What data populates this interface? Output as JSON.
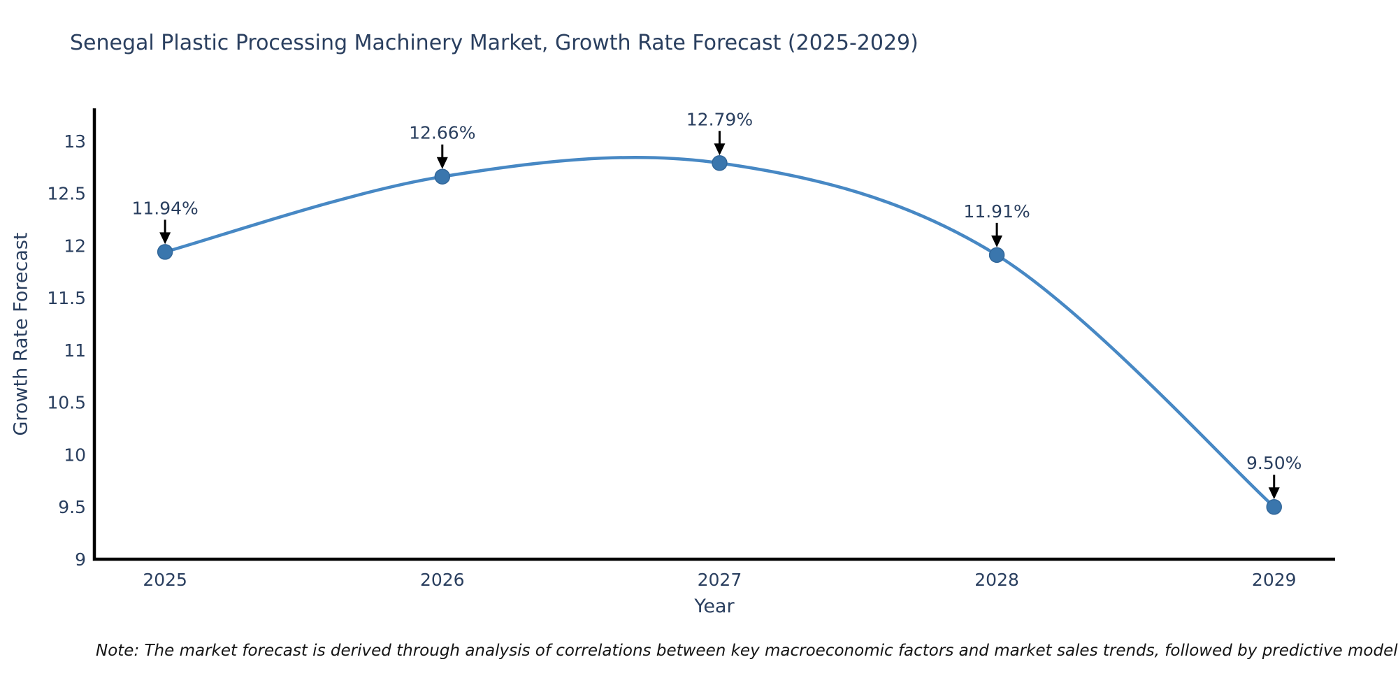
{
  "chart_data": {
    "type": "line",
    "title": "Senegal Plastic Processing Machinery Market, Growth Rate Forecast (2025-2029)",
    "xlabel": "Year",
    "ylabel": "Growth Rate Forecast",
    "x": [
      2025,
      2026,
      2027,
      2028,
      2029
    ],
    "y": [
      11.94,
      12.66,
      12.79,
      11.91,
      9.5
    ],
    "series": [
      {
        "name": "Growth Rate Forecast",
        "values": [
          11.94,
          12.66,
          12.79,
          11.91,
          9.5
        ]
      }
    ],
    "point_labels": [
      "11.94%",
      "12.66%",
      "12.79%",
      "11.91%",
      "9.50%"
    ],
    "xtick_labels": [
      "2025",
      "2026",
      "2027",
      "2028",
      "2029"
    ],
    "ytick_values": [
      9,
      9.5,
      10,
      10.5,
      11,
      11.5,
      12,
      12.5,
      13
    ],
    "ytick_labels": [
      "9",
      "9.5",
      "10",
      "10.5",
      "11",
      "11.5",
      "12",
      "12.5",
      "13"
    ],
    "xlim": [
      2024.745,
      2029.22
    ],
    "ylim": [
      9,
      13.3
    ],
    "grid": false,
    "legend_position": "none",
    "line_shape": "spline",
    "colors": {
      "line": "#4788c4",
      "marker": "#3a76ad",
      "marker_edge": "#32679a",
      "axis": "#000000",
      "text": "#2a3f5f",
      "arrow": "#000000",
      "background": "#ffffff"
    },
    "note": "Note: The market forecast is derived through analysis of correlations between key macroeconomic factors and market sales trends, followed by predictive modeling to project future sal"
  }
}
